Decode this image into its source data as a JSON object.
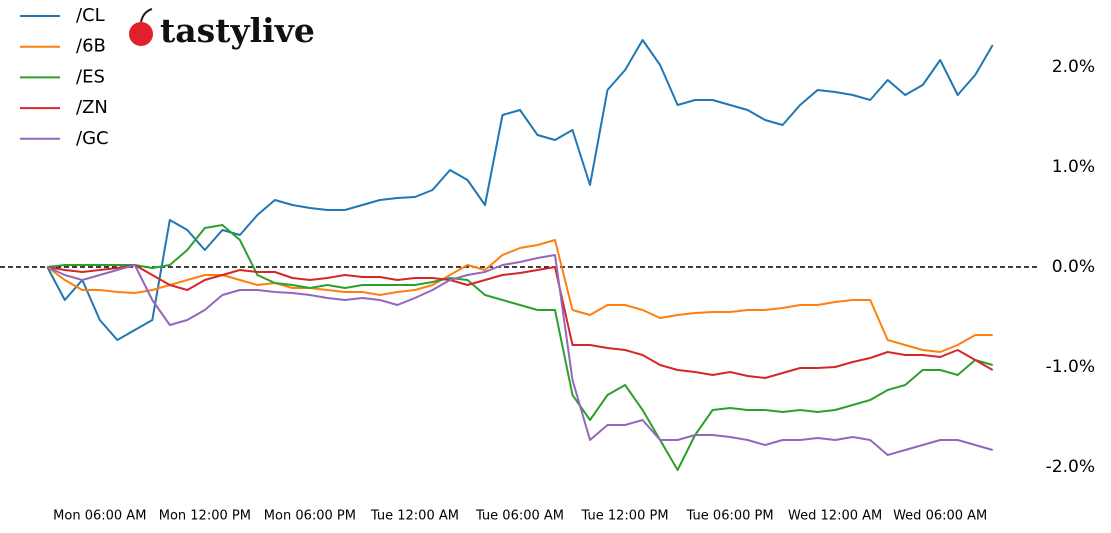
{
  "logo": "tastylive",
  "chart_data": {
    "type": "line",
    "x": [
      3,
      4,
      5,
      6,
      7,
      8,
      9,
      10,
      11,
      12,
      13,
      14,
      15,
      16,
      17,
      18,
      19,
      20,
      21,
      22,
      23,
      24,
      25,
      26,
      27,
      28,
      29,
      30,
      31,
      32,
      33,
      34,
      35,
      36,
      37,
      38,
      39,
      40,
      41,
      42,
      43,
      44,
      45,
      46,
      47,
      48,
      49,
      50,
      51,
      52,
      53,
      54,
      55,
      56,
      57
    ],
    "xlim": [
      0.3,
      59.7
    ],
    "xticks": [
      {
        "value": 6,
        "label": "Mon 06:00 AM"
      },
      {
        "value": 12,
        "label": "Mon 12:00 PM"
      },
      {
        "value": 18,
        "label": "Mon 06:00 PM"
      },
      {
        "value": 24,
        "label": "Tue 12:00 AM"
      },
      {
        "value": 30,
        "label": "Tue 06:00 AM"
      },
      {
        "value": 36,
        "label": "Tue 12:00 PM"
      },
      {
        "value": 42,
        "label": "Tue 06:00 PM"
      },
      {
        "value": 48,
        "label": "Wed 12:00 AM"
      },
      {
        "value": 54,
        "label": "Wed 06:00 AM"
      }
    ],
    "ylim": [
      -2.25,
      2.6
    ],
    "yticks": [
      {
        "value": -2,
        "label": "-2.0%"
      },
      {
        "value": -1,
        "label": "-1.0%"
      },
      {
        "value": 0,
        "label": "0.0%"
      },
      {
        "value": 1,
        "label": "1.0%"
      },
      {
        "value": 2,
        "label": "2.0%"
      }
    ],
    "hline": 0,
    "legend": "upper left",
    "series": [
      {
        "name": "/CL",
        "color": "#1f77b4",
        "values": [
          0,
          -0.33,
          -0.13,
          -0.53,
          -0.73,
          -0.63,
          -0.53,
          0.47,
          0.37,
          0.17,
          0.37,
          0.32,
          0.52,
          0.67,
          0.62,
          0.59,
          0.57,
          0.57,
          0.62,
          0.67,
          0.69,
          0.7,
          0.77,
          0.97,
          0.87,
          0.62,
          1.52,
          1.57,
          1.32,
          1.27,
          1.37,
          0.82,
          1.77,
          1.97,
          2.27,
          2.02,
          1.62,
          1.67,
          1.67,
          1.62,
          1.57,
          1.47,
          1.42,
          1.62,
          1.77,
          1.75,
          1.72,
          1.67,
          1.87,
          1.72,
          1.82,
          2.07,
          1.72,
          1.92,
          2.22
        ]
      },
      {
        "name": "/6B",
        "color": "#ff7f0e",
        "values": [
          0,
          -0.13,
          -0.23,
          -0.23,
          -0.25,
          -0.26,
          -0.23,
          -0.18,
          -0.13,
          -0.08,
          -0.08,
          -0.13,
          -0.18,
          -0.16,
          -0.21,
          -0.21,
          -0.23,
          -0.25,
          -0.25,
          -0.28,
          -0.25,
          -0.23,
          -0.18,
          -0.08,
          0.02,
          -0.03,
          0.12,
          0.19,
          0.22,
          0.27,
          -0.43,
          -0.48,
          -0.38,
          -0.38,
          -0.43,
          -0.51,
          -0.48,
          -0.46,
          -0.45,
          -0.45,
          -0.43,
          -0.43,
          -0.41,
          -0.38,
          -0.38,
          -0.35,
          -0.33,
          -0.33,
          -0.73,
          -0.78,
          -0.83,
          -0.85,
          -0.78,
          -0.68,
          -0.68
        ]
      },
      {
        "name": "/ES",
        "color": "#2ca02c",
        "values": [
          0,
          0.02,
          0.02,
          0.02,
          0.02,
          0.02,
          -0.01,
          0.02,
          0.17,
          0.39,
          0.42,
          0.27,
          -0.08,
          -0.16,
          -0.18,
          -0.21,
          -0.18,
          -0.21,
          -0.18,
          -0.18,
          -0.18,
          -0.18,
          -0.15,
          -0.11,
          -0.13,
          -0.28,
          -0.33,
          -0.38,
          -0.43,
          -0.43,
          -1.28,
          -1.53,
          -1.28,
          -1.18,
          -1.43,
          -1.73,
          -2.03,
          -1.68,
          -1.43,
          -1.41,
          -1.43,
          -1.43,
          -1.45,
          -1.43,
          -1.45,
          -1.43,
          -1.38,
          -1.33,
          -1.23,
          -1.18,
          -1.03,
          -1.03,
          -1.08,
          -0.93,
          -0.98
        ]
      },
      {
        "name": "/ZN",
        "color": "#d62728",
        "values": [
          0,
          -0.03,
          -0.05,
          -0.03,
          -0.01,
          0.02,
          -0.08,
          -0.18,
          -0.23,
          -0.13,
          -0.08,
          -0.03,
          -0.05,
          -0.05,
          -0.11,
          -0.13,
          -0.11,
          -0.08,
          -0.1,
          -0.1,
          -0.13,
          -0.11,
          -0.11,
          -0.13,
          -0.18,
          -0.13,
          -0.08,
          -0.06,
          -0.03,
          0,
          -0.78,
          -0.78,
          -0.81,
          -0.83,
          -0.88,
          -0.98,
          -1.03,
          -1.05,
          -1.08,
          -1.05,
          -1.09,
          -1.11,
          -1.06,
          -1.01,
          -1.01,
          -1.0,
          -0.95,
          -0.91,
          -0.85,
          -0.88,
          -0.88,
          -0.9,
          -0.83,
          -0.93,
          -1.03
        ]
      },
      {
        "name": "/GC",
        "color": "#9467bd",
        "values": [
          0,
          -0.08,
          -0.13,
          -0.08,
          -0.03,
          0.02,
          -0.33,
          -0.58,
          -0.53,
          -0.43,
          -0.28,
          -0.23,
          -0.23,
          -0.25,
          -0.26,
          -0.28,
          -0.31,
          -0.33,
          -0.31,
          -0.33,
          -0.38,
          -0.31,
          -0.23,
          -0.13,
          -0.08,
          -0.05,
          0.02,
          0.05,
          0.09,
          0.12,
          -1.13,
          -1.73,
          -1.58,
          -1.58,
          -1.53,
          -1.73,
          -1.73,
          -1.68,
          -1.68,
          -1.7,
          -1.73,
          -1.78,
          -1.73,
          -1.73,
          -1.71,
          -1.73,
          -1.7,
          -1.73,
          -1.88,
          -1.83,
          -1.78,
          -1.73,
          -1.73,
          -1.78,
          -1.83
        ]
      }
    ]
  }
}
